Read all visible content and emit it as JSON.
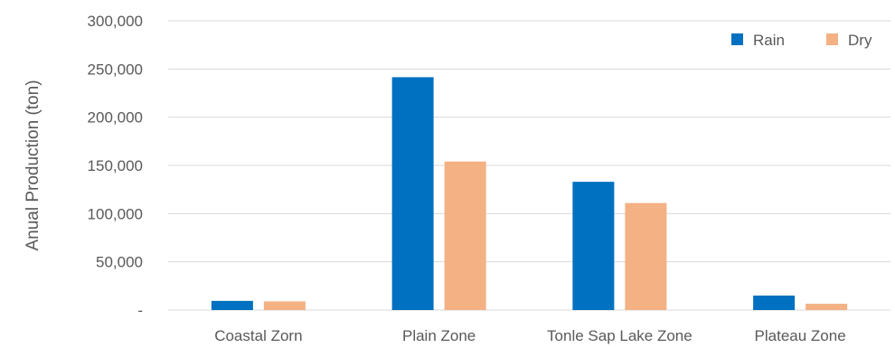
{
  "chart_data": {
    "type": "bar",
    "title": "",
    "xlabel": "",
    "ylabel": "Anual Production (ton)",
    "categories": [
      "Coastal Zorn",
      "Plain Zone",
      "Tonle Sap Lake Zone",
      "Plateau Zone"
    ],
    "series": [
      {
        "name": "Rain",
        "color": "#0070C0",
        "values": [
          9500,
          241500,
          133000,
          15000
        ]
      },
      {
        "name": "Dry",
        "color": "#F4B183",
        "values": [
          9000,
          154000,
          111000,
          6500
        ]
      }
    ],
    "ylim": [
      0,
      300000
    ],
    "yticks": [
      0,
      50000,
      100000,
      150000,
      200000,
      250000,
      300000
    ],
    "ytick_labels": [
      "-",
      "50,000",
      "100,000",
      "150,000",
      "200,000",
      "250,000",
      "300,000"
    ],
    "grid": true,
    "legend_position": "top-right"
  }
}
